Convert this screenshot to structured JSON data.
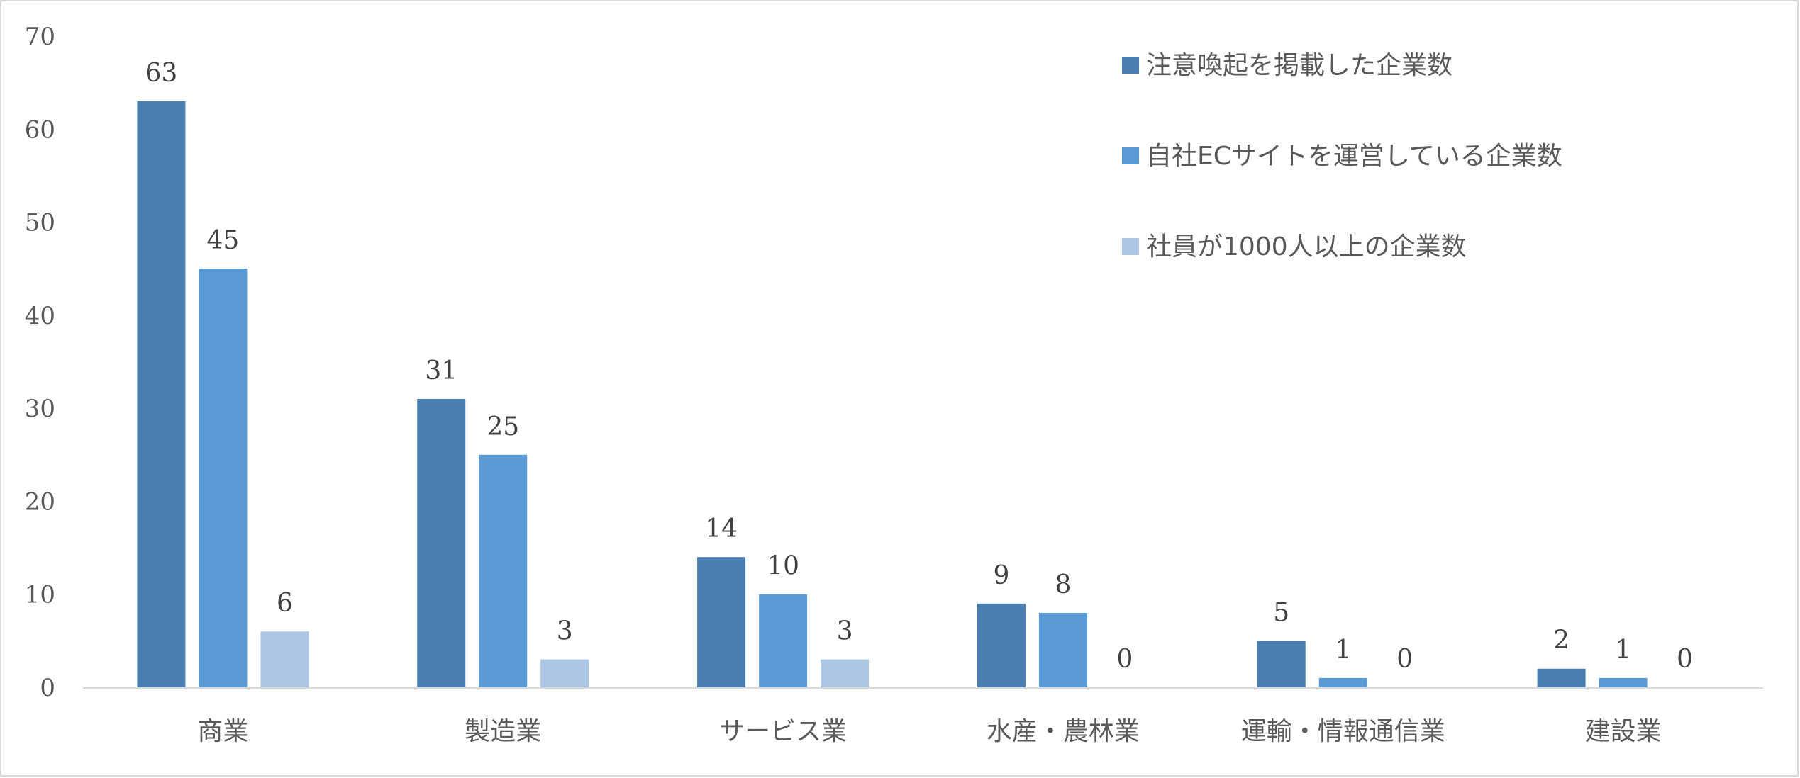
{
  "chart_data": {
    "type": "bar",
    "categories": [
      "商業",
      "製造業",
      "サービス業",
      "水産・農林業",
      "運輸・情報通信業",
      "建設業"
    ],
    "series": [
      {
        "name": "注意喚起を掲載した企業数",
        "values": [
          63,
          31,
          14,
          9,
          5,
          2
        ],
        "color": "#4a7eb0"
      },
      {
        "name": "自社ECサイトを運営している企業数",
        "values": [
          45,
          25,
          10,
          8,
          1,
          1
        ],
        "color": "#5b9bd5"
      },
      {
        "name": "社員が1000人以上の企業数",
        "values": [
          6,
          3,
          3,
          0,
          0,
          0
        ],
        "color": "#adc6e6"
      }
    ],
    "yticks": [
      "0",
      "10",
      "20",
      "30",
      "40",
      "50",
      "60",
      "70"
    ],
    "ylim": [
      0,
      70
    ],
    "grid": false,
    "legend": "top-right",
    "data_labels": true
  }
}
